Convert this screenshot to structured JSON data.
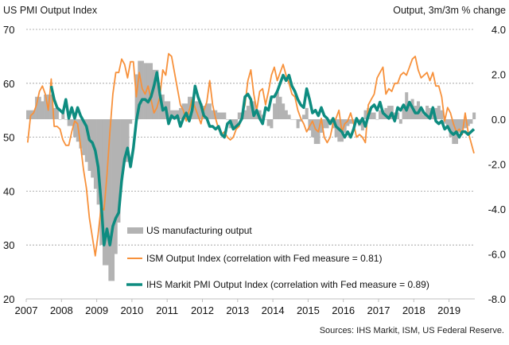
{
  "header": {
    "title_left": "US PMI Output Index",
    "title_right": "Output, 3m/3m % change"
  },
  "footer": {
    "source": "Sources: IHS Markit, ISM, US Federal Reserve."
  },
  "colors": {
    "bars": "#b3b3b3",
    "ism": "#f7913b",
    "pmi": "#0e8c80",
    "grid": "#999999",
    "axis": "#bfbfbf"
  },
  "chart_data": {
    "type": "line",
    "title": "US PMI Output Index",
    "ylabel_left": "",
    "ylabel_right": "Output, 3m/3m % change",
    "x_start": "2007-01",
    "frequency": "monthly",
    "xticks": [
      "2007",
      "2008",
      "2009",
      "2010",
      "2011",
      "2012",
      "2013",
      "2014",
      "2015",
      "2016",
      "2017",
      "2018",
      "2019"
    ],
    "ylim_left": [
      20,
      70
    ],
    "yticks_left": [
      "20",
      "30",
      "40",
      "50",
      "60",
      "70"
    ],
    "ylim_right": [
      -8.0,
      4.0
    ],
    "yticks_right": [
      "-8.0",
      "-6.0",
      "-4.0",
      "-2.0",
      "0.0",
      "2.0",
      "4.0"
    ],
    "grid": true,
    "legend_position": "bottom-center",
    "series": [
      {
        "name": "US manufacturing output",
        "type": "bar",
        "axis": "right",
        "values": [
          0.4,
          0.4,
          0.4,
          1.0,
          1.0,
          0.8,
          1.1,
          1.1,
          1.1,
          0.5,
          0.5,
          0.0,
          0.3,
          0.0,
          -0.3,
          -0.3,
          -0.8,
          -1.0,
          -1.3,
          -1.6,
          -1.9,
          -2.3,
          -2.6,
          -3.1,
          -3.8,
          -5.6,
          -6.5,
          -6.5,
          -7.2,
          -7.2,
          -6.0,
          -4.6,
          -2.7,
          -1.9,
          -1.9,
          -0.2,
          0.0,
          2.0,
          2.6,
          2.6,
          2.5,
          2.5,
          2.5,
          2.2,
          2.2,
          1.1,
          1.1,
          0.8,
          0.8,
          0.4,
          0.4,
          0.4,
          0.5,
          0.7,
          0.7,
          1.0,
          1.0,
          0.8,
          0.8,
          0.7,
          0.6,
          0.7,
          0.7,
          0.4,
          0.4,
          0.3,
          0.3,
          0.3,
          0.0,
          -0.4,
          -0.4,
          -0.3,
          0.3,
          0.3,
          0.4,
          0.6,
          0.8,
          0.8,
          0.4,
          0.4,
          0.2,
          0.0,
          -0.3,
          -0.4,
          0.7,
          1.2,
          1.0,
          0.7,
          0.4,
          0.2,
          0.0,
          0.0,
          -0.4,
          -0.1,
          0.2,
          0.5,
          -0.5,
          -0.8,
          -1.1,
          -1.1,
          -0.6,
          -0.4,
          -0.4,
          -0.2,
          -0.4,
          -0.8,
          -1.0,
          -1.0,
          -0.6,
          -0.3,
          -0.2,
          -0.2,
          -0.1,
          -0.3,
          -0.5,
          0.4,
          0.5,
          0.3,
          0.3,
          0.0,
          0.4,
          0.4,
          0.5,
          0.6,
          0.6,
          0.3,
          0.3,
          -0.2,
          0.6,
          1.2,
          0.8,
          0.9,
          0.6,
          0.8,
          0.5,
          0.2,
          0.6,
          0.5,
          0.4,
          0.5,
          0.6,
          0.4,
          -0.2,
          -0.4,
          -0.8,
          -1.1,
          -1.1,
          -0.6,
          -0.6,
          -0.4,
          -0.3,
          -0.2,
          0.3
        ]
      },
      {
        "name": "ISM Output Index (correlation with Fed measure = 0.81)",
        "type": "line",
        "axis": "left",
        "values": [
          49.0,
          54.0,
          54.5,
          56.0,
          58.5,
          59.5,
          58.0,
          55.0,
          60.8,
          52.0,
          52.0,
          51.5,
          49.5,
          48.5,
          48.5,
          51.0,
          53.0,
          52.5,
          48.5,
          44.0,
          40.5,
          35.0,
          31.5,
          28.0,
          32.0,
          37.0,
          36.5,
          43.0,
          51.0,
          58.0,
          62.0,
          62.0,
          64.5,
          63.5,
          61.0,
          64.0,
          64.0,
          57.5,
          62.0,
          59.0,
          58.0,
          59.5,
          57.0,
          54.5,
          55.5,
          57.5,
          62.5,
          61.5,
          65.5,
          65.0,
          62.0,
          59.0,
          56.0,
          55.0,
          53.0,
          55.0,
          57.0,
          55.5,
          54.0,
          52.5,
          55.0,
          56.5,
          60.5,
          56.0,
          53.5,
          51.5,
          50.5,
          51.0,
          50.0,
          49.5,
          50.0,
          51.5,
          52.0,
          54.0,
          56.0,
          60.5,
          62.5,
          58.0,
          55.0,
          58.5,
          59.0,
          56.0,
          58.5,
          61.5,
          63.0,
          60.5,
          62.0,
          63.5,
          61.5,
          60.0,
          58.0,
          57.5,
          55.0,
          53.5,
          52.5,
          51.0,
          52.0,
          53.0,
          51.5,
          51.0,
          53.5,
          50.0,
          49.0,
          50.0,
          52.5,
          53.5,
          55.0,
          51.0,
          52.5,
          53.0,
          54.5,
          52.5,
          50.0,
          50.5,
          50.0,
          49.0,
          56.0,
          57.0,
          58.0,
          61.0,
          62.0,
          63.0,
          58.0,
          59.0,
          58.5,
          60.0,
          60.0,
          61.5,
          62.0,
          61.5,
          63.0,
          64.5,
          65.0,
          62.5,
          61.0,
          61.5,
          62.0,
          60.5,
          62.0,
          59.5,
          59.5,
          57.5,
          53.0,
          55.5,
          54.5,
          52.5,
          51.0,
          51.5,
          50.5,
          54.5,
          51.0,
          49.0,
          47.0
        ]
      },
      {
        "name": "IHS Markit PMI Output Index (correlation with Fed measure = 0.89)",
        "type": "line",
        "axis": "left",
        "values": [
          null,
          null,
          null,
          null,
          null,
          null,
          null,
          null,
          null,
          null,
          null,
          null,
          null,
          null,
          null,
          null,
          null,
          null,
          null,
          null,
          null,
          null,
          null,
          null,
          null,
          null,
          null,
          null,
          null,
          null,
          null,
          null,
          null,
          null,
          null,
          null,
          null,
          null,
          null,
          null,
          null,
          null,
          null,
          null,
          null,
          null,
          null,
          null,
          null,
          null,
          null,
          null,
          null,
          null,
          null,
          null,
          null,
          null,
          null,
          null,
          null,
          null,
          null,
          null,
          null,
          null,
          null,
          null,
          null,
          null,
          null,
          null,
          null,
          null,
          null,
          null,
          null,
          null,
          null,
          null,
          null,
          null,
          null,
          null,
          null,
          null,
          null,
          null,
          null,
          null,
          null,
          null,
          null,
          null,
          null,
          null,
          null,
          null,
          null,
          null,
          null,
          null,
          null,
          null,
          null,
          null,
          null,
          null,
          null,
          null,
          null,
          null,
          null,
          null,
          null,
          null,
          null,
          null,
          null,
          null,
          null,
          null,
          null,
          null,
          null,
          null,
          null,
          null,
          null,
          null,
          null,
          null,
          null,
          null,
          null,
          null,
          null,
          null,
          null,
          null,
          null,
          null,
          null,
          null,
          null,
          null,
          null,
          null,
          null,
          null,
          null,
          null,
          null
        ],
        "note": "see pmi_values"
      }
    ],
    "pmi_values": [
      null,
      null,
      null,
      null,
      null,
      null,
      null,
      null,
      59.5,
      57.0,
      55.5,
      55.0,
      54.5,
      57.0,
      53.5,
      55.5,
      53.5,
      55.5,
      54.0,
      53.0,
      52.0,
      49.5,
      49.0,
      47.5,
      44.5,
      38.0,
      30.0,
      33.0,
      30.0,
      33.5,
      35.0,
      36.0,
      42.0,
      46.0,
      48.0,
      44.5,
      48.0,
      53.0,
      56.0,
      57.0,
      57.0,
      56.5,
      57.5,
      59.5,
      62.0,
      58.0,
      55.0,
      55.5,
      52.5,
      54.0,
      53.5,
      54.0,
      52.0,
      53.5,
      54.5,
      53.0,
      55.0,
      59.5,
      57.5,
      56.0,
      54.0,
      53.5,
      52.0,
      52.0,
      51.5,
      52.0,
      50.5,
      50.0,
      52.5,
      53.0,
      51.5,
      52.0,
      52.5,
      53.5,
      57.5,
      58.0,
      57.0,
      54.0,
      55.0,
      53.5,
      52.5,
      55.5,
      55.0,
      57.5,
      57.5,
      58.5,
      60.0,
      61.5,
      60.5,
      61.5,
      59.5,
      58.5,
      57.0,
      56.0,
      55.5,
      59.0,
      57.0,
      54.5,
      55.0,
      54.0,
      55.5,
      54.0,
      53.5,
      52.5,
      53.5,
      52.0,
      51.5,
      51.0,
      50.0,
      51.0,
      50.0,
      51.5,
      53.5,
      52.5,
      53.5,
      52.0,
      54.0,
      55.5,
      56.0,
      55.0,
      56.5,
      54.5,
      54.0,
      53.5,
      54.5,
      53.0,
      55.5,
      55.0,
      56.0,
      55.0,
      56.5,
      55.5,
      54.5,
      54.5,
      55.5,
      54.5,
      54.0,
      53.5,
      55.5,
      53.0,
      52.5,
      53.0,
      51.5,
      52.0,
      51.0,
      50.5,
      51.0,
      50.0,
      51.0,
      51.0,
      50.5,
      51.0,
      51.5
    ]
  }
}
